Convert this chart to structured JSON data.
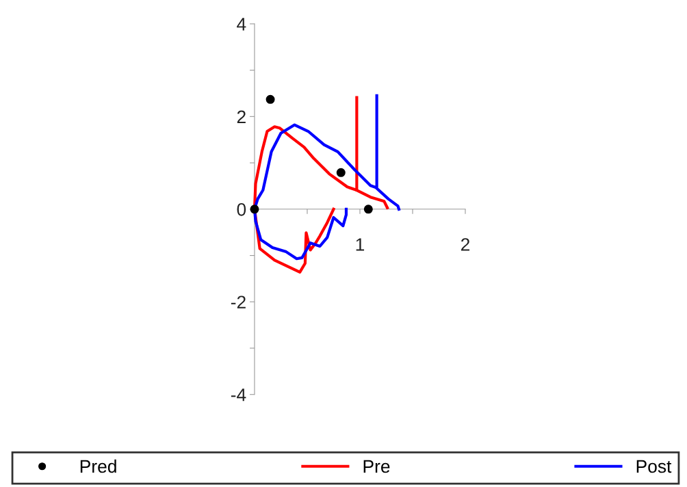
{
  "chart_data": {
    "type": "line",
    "xlim": [
      0,
      2
    ],
    "ylim": [
      -4,
      4
    ],
    "xticks": [
      {
        "value": 0,
        "label": null
      },
      {
        "value": 0.5,
        "label": null
      },
      1,
      {
        "value": 1.5,
        "label": null
      },
      2
    ],
    "yticks": [
      -4,
      {
        "value": -3,
        "label": null
      },
      -2,
      {
        "value": -1,
        "label": null
      },
      0,
      {
        "value": 1,
        "label": null
      },
      2,
      {
        "value": 3,
        "label": null
      },
      4
    ],
    "grid": false,
    "legend": "bottom",
    "series": [
      {
        "name": "Pred",
        "type": "scatter",
        "marker": "circle",
        "color": "#000000",
        "x": [
          0.15,
          0.82,
          1.08,
          0
        ],
        "values": [
          2.37,
          0.79,
          0,
          0
        ]
      },
      {
        "name": "Pre",
        "line_style": "solid",
        "color": "#ff0000",
        "x": [
          0.75,
          0.69,
          0.62,
          0.58,
          0.53,
          0.49,
          0.48,
          0.43,
          0.32,
          0.19,
          0.05,
          0,
          0.01,
          0.07,
          0.12,
          0.19,
          0.24,
          0.36,
          0.47,
          0.56,
          0.71,
          0.88,
          0.97,
          1.1,
          1.23,
          1.26,
          null,
          0.97,
          0.97
        ],
        "values": [
          0,
          -0.29,
          -0.58,
          -0.73,
          -0.88,
          -0.51,
          -1.17,
          -1.36,
          -1.24,
          -1.1,
          -0.85,
          0,
          0.55,
          1.24,
          1.68,
          1.78,
          1.75,
          1.53,
          1.34,
          1.1,
          0.76,
          0.48,
          0.41,
          0.26,
          0.17,
          0.03,
          null,
          0.41,
          2.41
        ]
      },
      {
        "name": "Post",
        "line_style": "solid",
        "color": "#0000ff",
        "x": [
          0.87,
          0.87,
          0.84,
          0.75,
          0.69,
          0.62,
          0.53,
          0.45,
          0.4,
          0.3,
          0.17,
          0.06,
          0.01,
          0,
          0.03,
          0.08,
          0.16,
          0.25,
          0.38,
          0.51,
          0.66,
          0.79,
          0.95,
          1.1,
          1.15,
          1.27,
          1.36,
          1.37,
          null,
          1.16,
          1.16
        ],
        "values": [
          0,
          -0.12,
          -0.36,
          -0.18,
          -0.61,
          -0.8,
          -0.73,
          -1.05,
          -1.07,
          -0.92,
          -0.83,
          -0.66,
          -0.26,
          0,
          0.22,
          0.41,
          1.24,
          1.64,
          1.82,
          1.68,
          1.39,
          1.24,
          0.85,
          0.51,
          0.47,
          0.22,
          0.07,
          0,
          null,
          0.47,
          2.45
        ]
      }
    ]
  }
}
